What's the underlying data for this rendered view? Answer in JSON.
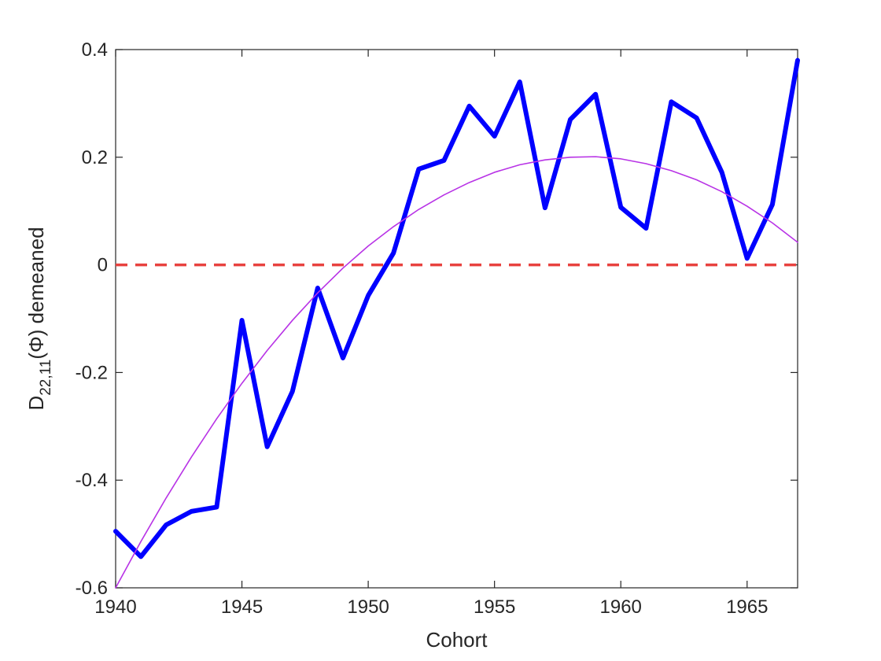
{
  "chart_data": {
    "type": "line",
    "xlabel": "Cohort",
    "ylabel": {
      "base": "D",
      "subscript": "22,11",
      "rest": "(Φ) demeaned"
    },
    "xlim": [
      1940,
      1967
    ],
    "ylim": [
      -0.6,
      0.4
    ],
    "x_ticks": [
      1940,
      1945,
      1950,
      1955,
      1960,
      1965
    ],
    "x_tick_labels": [
      "1940",
      "1945",
      "1950",
      "1955",
      "1960",
      "1965"
    ],
    "y_ticks": [
      -0.6,
      -0.4,
      -0.2,
      0,
      0.2,
      0.4
    ],
    "y_tick_labels": [
      "-0.6",
      "-0.4",
      "-0.2",
      "0",
      "0.2",
      "0.4"
    ],
    "grid": false,
    "series": [
      {
        "role": "data",
        "color": "#0000ff",
        "style": "solid",
        "x": [
          1940,
          1941,
          1942,
          1943,
          1944,
          1945,
          1946,
          1947,
          1948,
          1949,
          1950,
          1951,
          1952,
          1953,
          1954,
          1955,
          1956,
          1957,
          1958,
          1959,
          1960,
          1961,
          1962,
          1963,
          1964,
          1965,
          1966,
          1967
        ],
        "values": [
          -0.495,
          -0.542,
          -0.483,
          -0.458,
          -0.45,
          -0.103,
          -0.338,
          -0.235,
          -0.043,
          -0.173,
          -0.057,
          0.022,
          0.178,
          0.194,
          0.295,
          0.239,
          0.34,
          0.106,
          0.27,
          0.317,
          0.107,
          0.068,
          0.303,
          0.273,
          0.172,
          0.012,
          0.112,
          0.38
        ]
      },
      {
        "role": "quadratic-fit",
        "color": "#b833e6",
        "style": "solid",
        "x": [
          1940,
          1941,
          1942,
          1943,
          1944,
          1945,
          1946,
          1947,
          1948,
          1949,
          1950,
          1951,
          1952,
          1953,
          1954,
          1955,
          1956,
          1957,
          1958,
          1959,
          1960,
          1961,
          1962,
          1963,
          1964,
          1965,
          1966,
          1967
        ],
        "values": [
          -0.6,
          -0.514,
          -0.433,
          -0.357,
          -0.286,
          -0.22,
          -0.159,
          -0.103,
          -0.052,
          -0.006,
          0.035,
          0.071,
          0.103,
          0.13,
          0.153,
          0.172,
          0.186,
          0.195,
          0.2,
          0.201,
          0.197,
          0.188,
          0.175,
          0.158,
          0.136,
          0.109,
          0.078,
          0.042
        ]
      },
      {
        "role": "zero-line",
        "color": "#e8423f",
        "style": "dashed",
        "x": [
          1940,
          1967
        ],
        "values": [
          0,
          0
        ]
      }
    ]
  }
}
